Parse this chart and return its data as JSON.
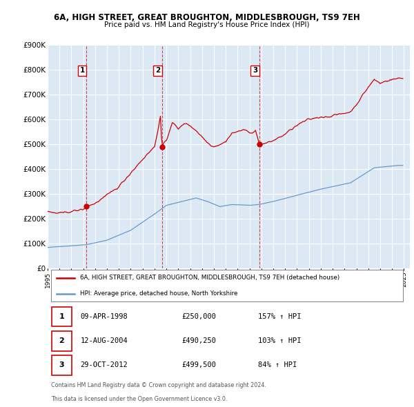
{
  "title": "6A, HIGH STREET, GREAT BROUGHTON, MIDDLESBROUGH, TS9 7EH",
  "subtitle": "Price paid vs. HM Land Registry's House Price Index (HPI)",
  "background_color": "#ffffff",
  "plot_bg_color": "#dce9f5",
  "grid_color": "#ffffff",
  "sale_color": "#cc0000",
  "hpi_color": "#6699cc",
  "sale_label": "6A, HIGH STREET, GREAT BROUGHTON, MIDDLESBROUGH, TS9 7EH (detached house)",
  "hpi_label": "HPI: Average price, detached house, North Yorkshire",
  "transactions": [
    {
      "num": 1,
      "date": "09-APR-1998",
      "price": 250000,
      "hpi_pct": "157% ↑ HPI",
      "year": 1998.28
    },
    {
      "num": 2,
      "date": "12-AUG-2004",
      "price": 490250,
      "hpi_pct": "103% ↑ HPI",
      "year": 2004.62
    },
    {
      "num": 3,
      "date": "29-OCT-2012",
      "price": 499500,
      "hpi_pct": "84% ↑ HPI",
      "year": 2012.83
    }
  ],
  "footer_line1": "Contains HM Land Registry data © Crown copyright and database right 2024.",
  "footer_line2": "This data is licensed under the Open Government Licence v3.0.",
  "ylim": [
    0,
    900000
  ],
  "yticks": [
    0,
    100000,
    200000,
    300000,
    400000,
    500000,
    600000,
    700000,
    800000,
    900000
  ],
  "ytick_labels": [
    "£0",
    "£100K",
    "£200K",
    "£300K",
    "£400K",
    "£500K",
    "£600K",
    "£700K",
    "£800K",
    "£900K"
  ],
  "xlim_start": 1995.0,
  "xlim_end": 2025.5
}
